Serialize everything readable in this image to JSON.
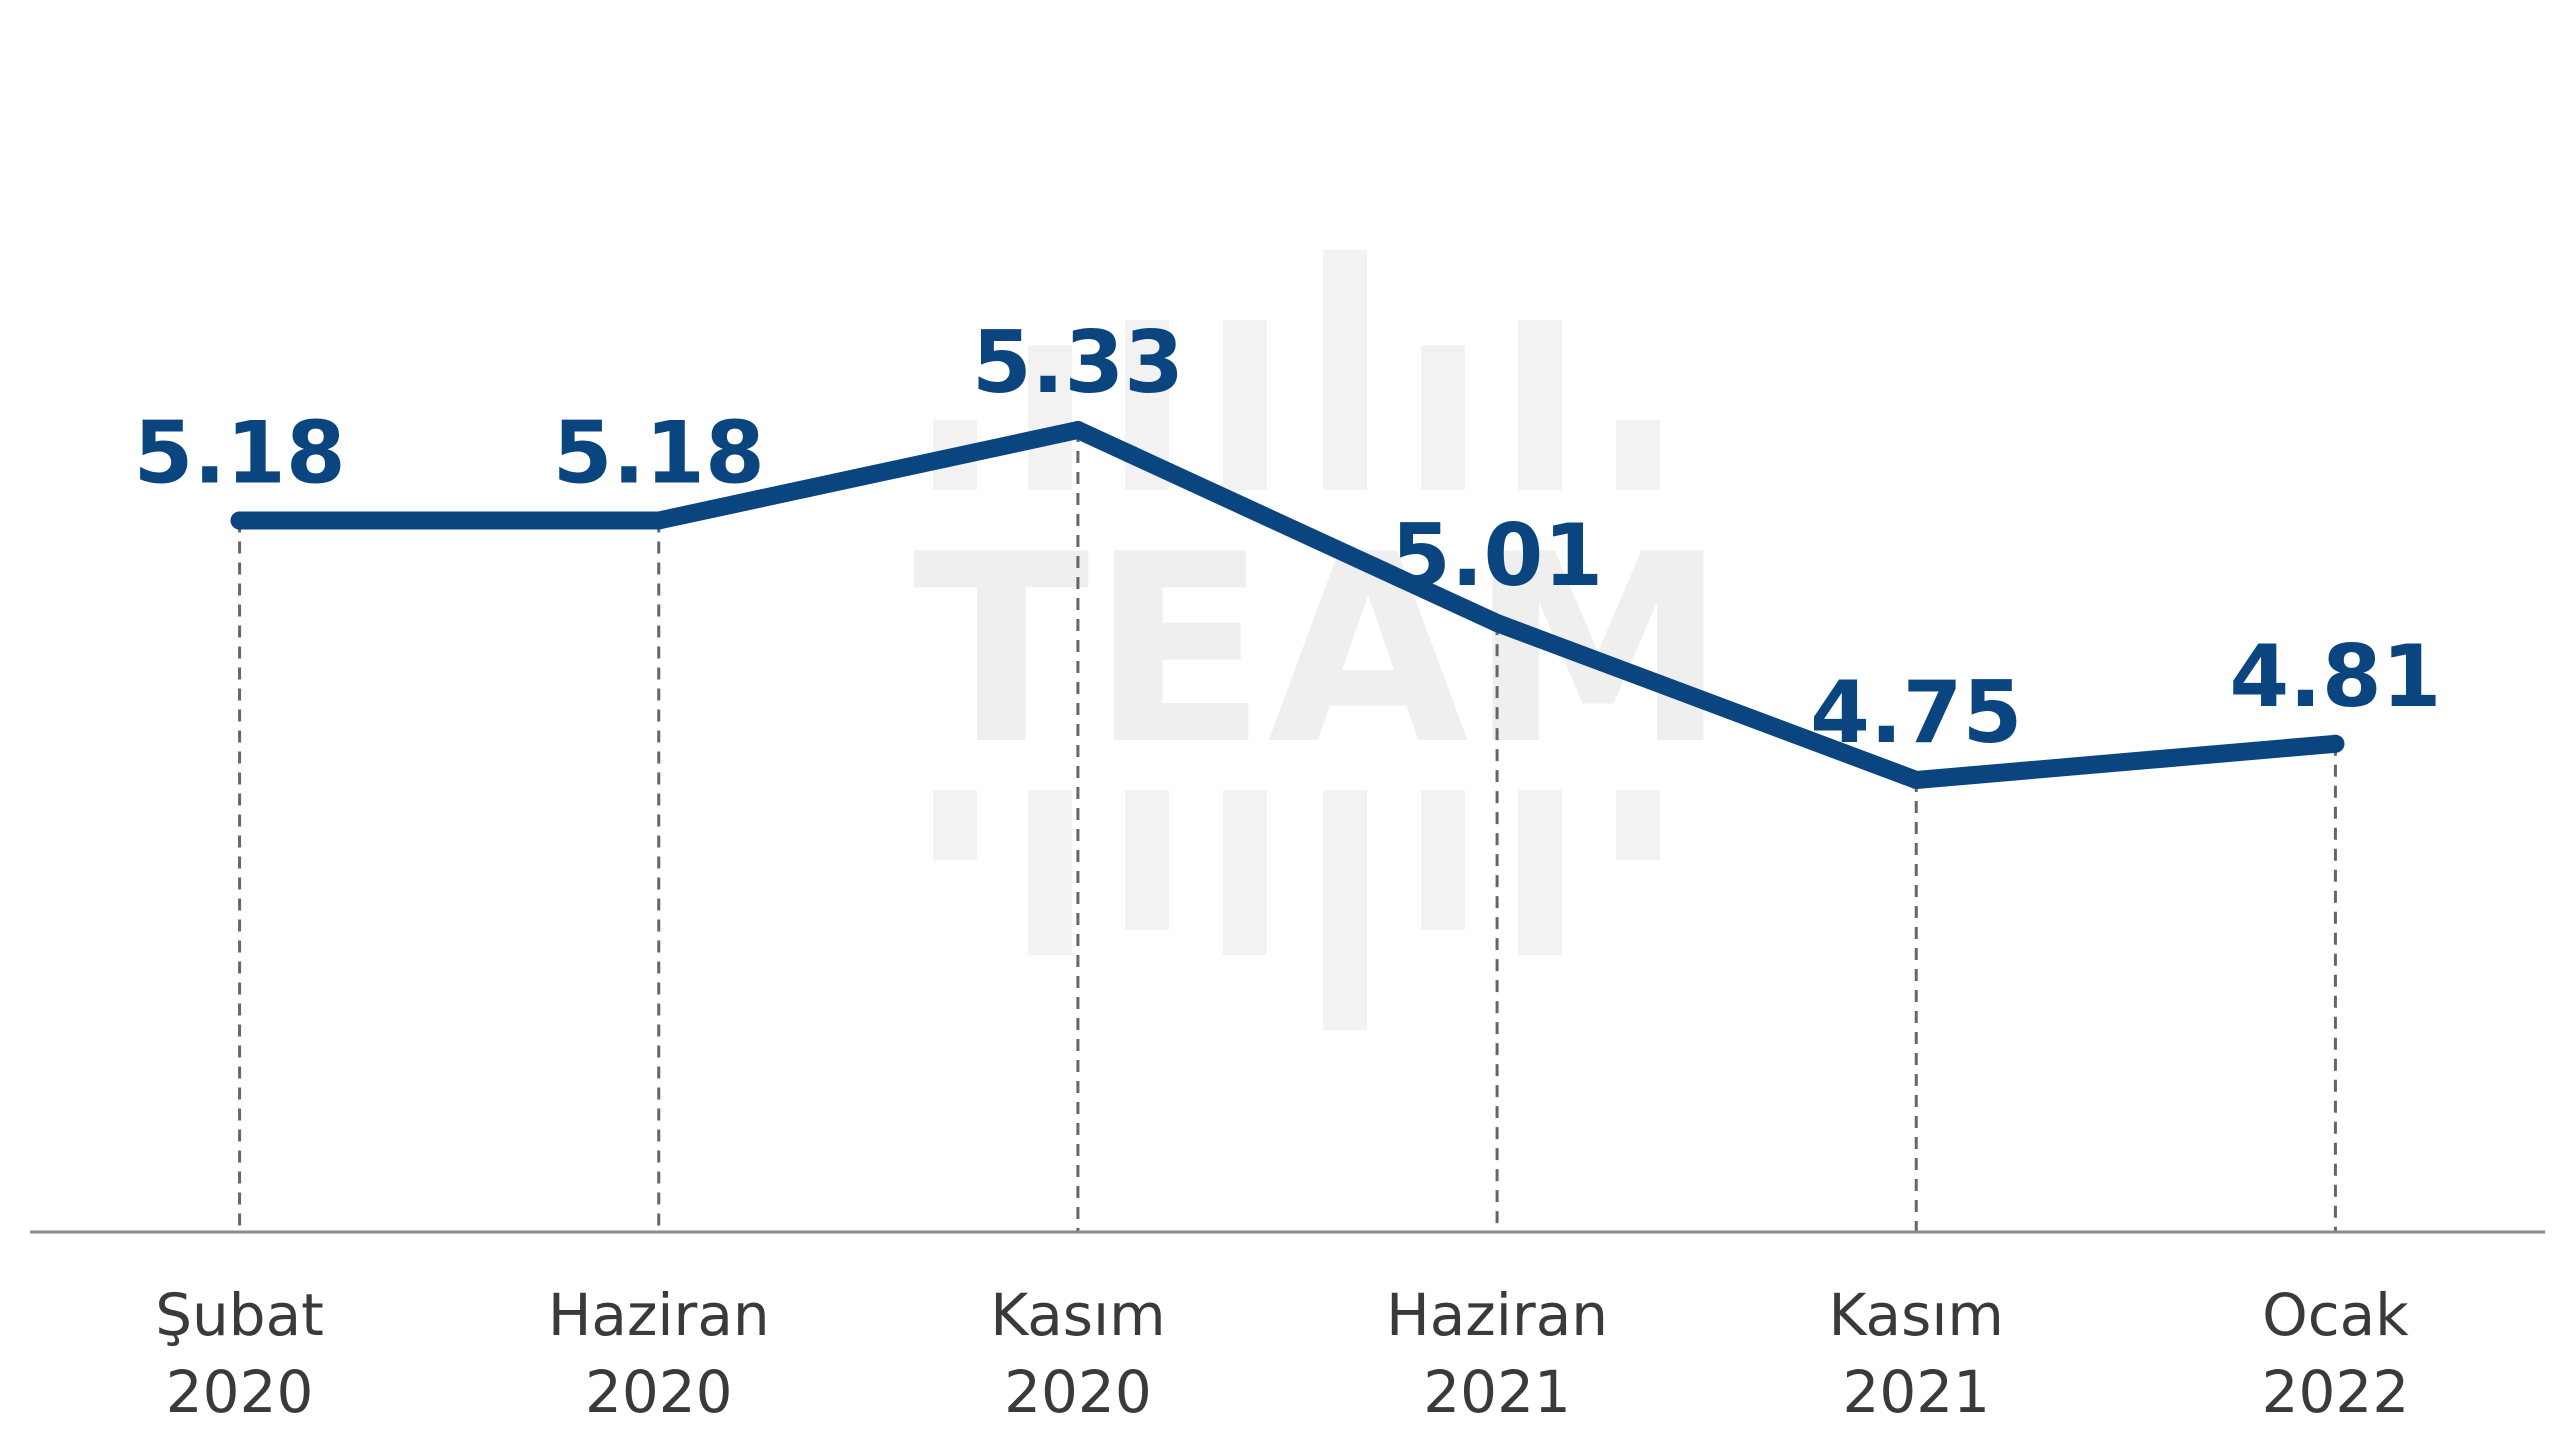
{
  "watermark": {
    "text": "TEAM"
  },
  "chart_data": {
    "type": "line",
    "title": "",
    "xlabel": "",
    "ylabel": "",
    "categories": [
      [
        "Şubat",
        "2020"
      ],
      [
        "Haziran",
        "2020"
      ],
      [
        "Kasım",
        "2020"
      ],
      [
        "Haziran",
        "2021"
      ],
      [
        "Kasım",
        "2021"
      ],
      [
        "Ocak",
        "2022"
      ]
    ],
    "series": [
      {
        "values": [
          5.18,
          5.18,
          5.33,
          5.01,
          4.75,
          4.81
        ],
        "value_labels": [
          "5.18",
          "5.18",
          "5.33",
          "5.01",
          "4.75",
          "4.81"
        ]
      }
    ],
    "y_axis_visible": false,
    "grid": false,
    "vertical_guides": "dashed",
    "line_color": "#0b4580",
    "label_color": "#0b4580"
  }
}
